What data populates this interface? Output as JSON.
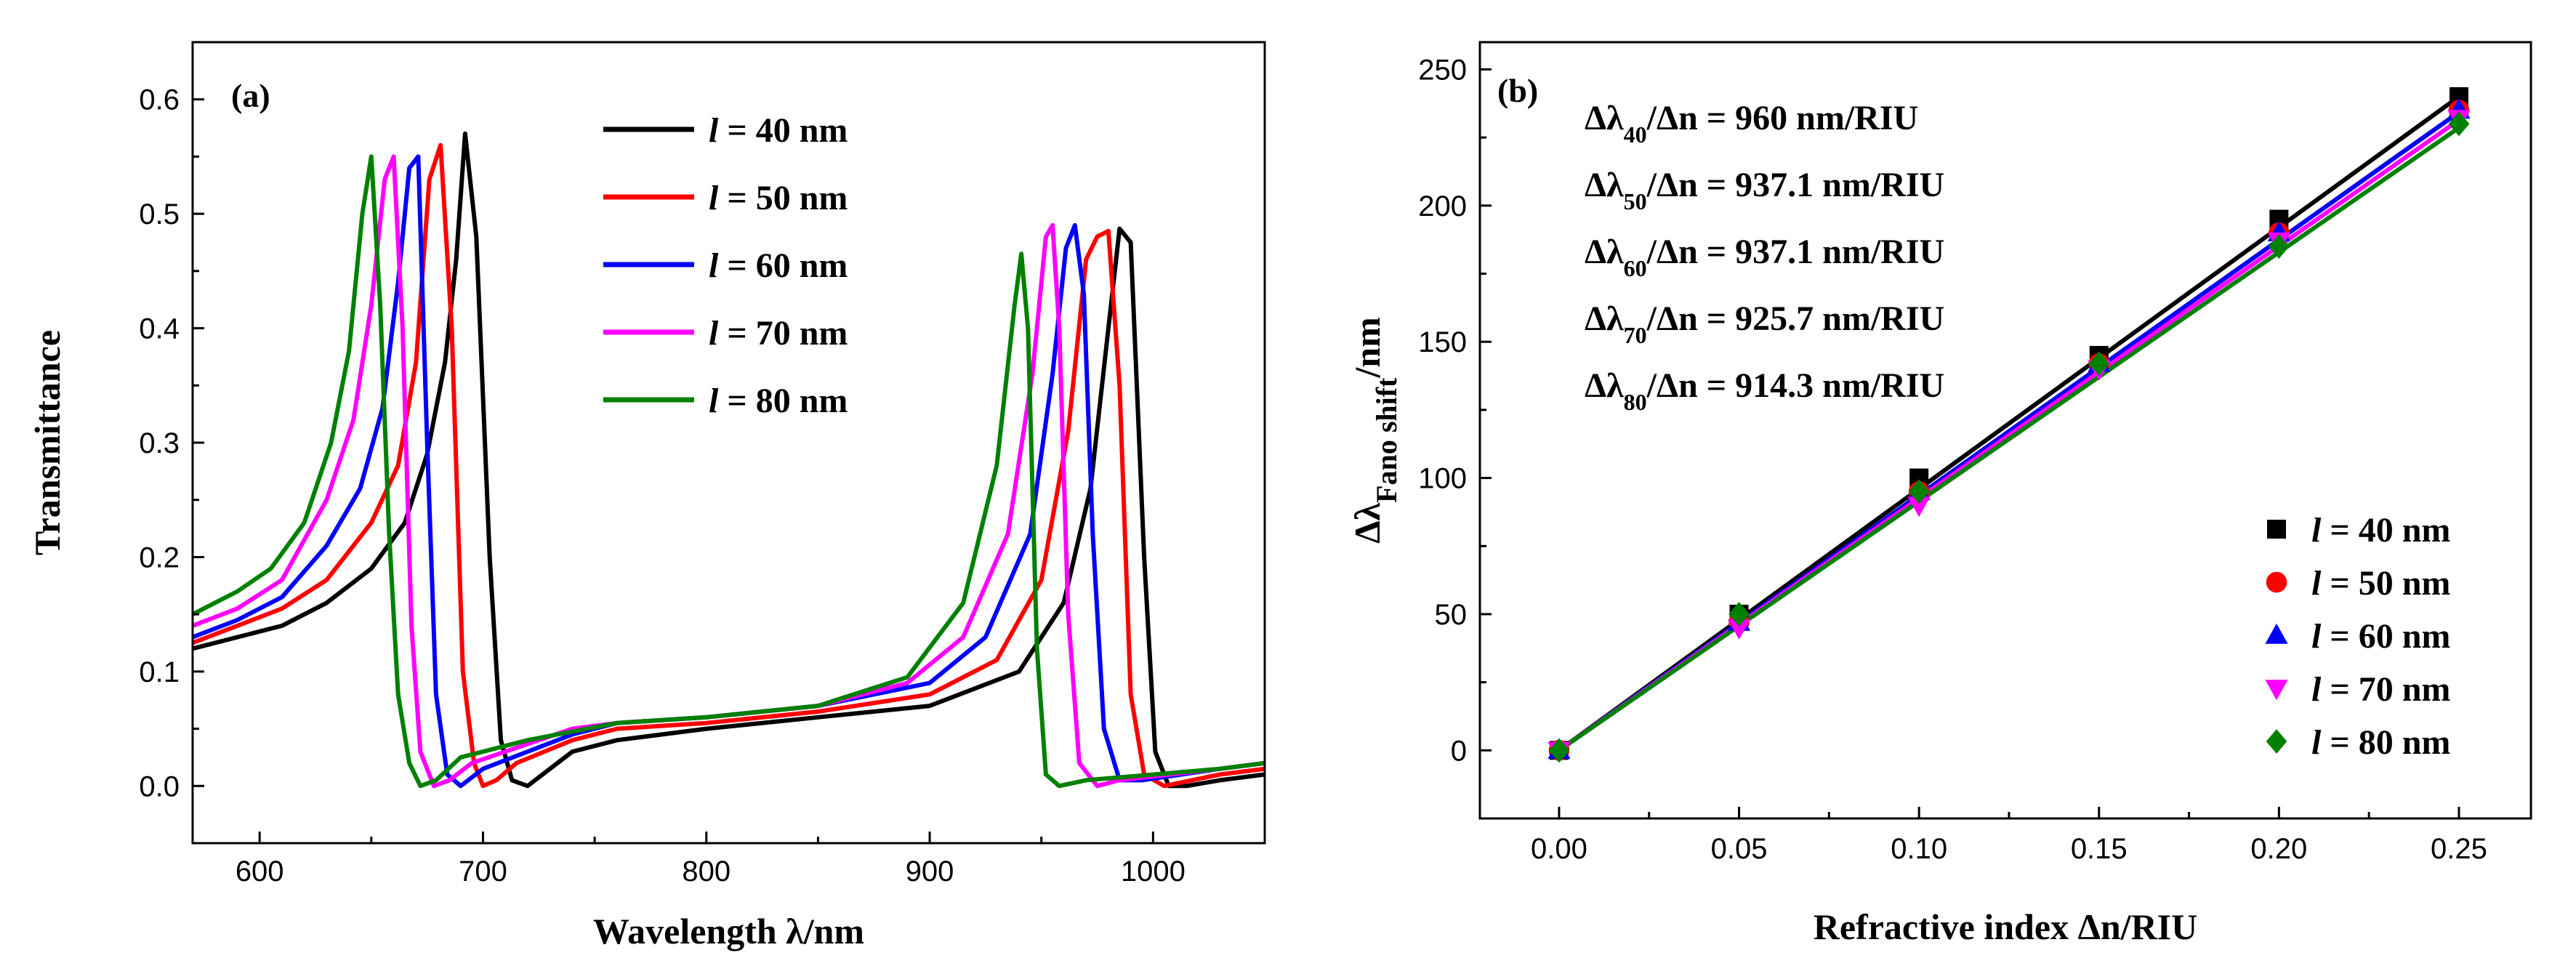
{
  "chart_data": [
    {
      "id": "a",
      "type": "line",
      "panel_label": "(a)",
      "title": "",
      "xlabel": "Wavelength λ/nm",
      "ylabel": "Transmittance",
      "xlim": [
        570,
        1050
      ],
      "ylim": [
        -0.05,
        0.65
      ],
      "xticks": [
        600,
        700,
        800,
        900,
        1000
      ],
      "yticks": [
        0.0,
        0.1,
        0.2,
        0.3,
        0.4,
        0.5,
        0.6
      ],
      "xtick_labels": [
        "600",
        "700",
        "800",
        "900",
        "1000"
      ],
      "ytick_labels": [
        "0.0",
        "0.1",
        "0.2",
        "0.3",
        "0.4",
        "0.5",
        "0.6"
      ],
      "legend_position": "top-center",
      "series": [
        {
          "name": "40 nm",
          "legend_var": "l",
          "color": "#000000",
          "x": [
            570,
            590,
            610,
            630,
            650,
            665,
            675,
            683,
            688,
            692,
            697,
            703,
            708,
            713,
            720,
            740,
            760,
            800,
            850,
            900,
            940,
            960,
            972,
            980,
            985,
            990,
            996,
            1001,
            1007,
            1015,
            1030,
            1050
          ],
          "y": [
            0.12,
            0.13,
            0.14,
            0.16,
            0.19,
            0.23,
            0.29,
            0.37,
            0.46,
            0.57,
            0.48,
            0.2,
            0.04,
            0.005,
            0.0,
            0.03,
            0.04,
            0.05,
            0.06,
            0.07,
            0.1,
            0.16,
            0.26,
            0.4,
            0.487,
            0.475,
            0.2,
            0.03,
            0.0,
            0.0,
            0.005,
            0.01
          ]
        },
        {
          "name": "50 nm",
          "legend_var": "l",
          "color": "#ff0000",
          "x": [
            570,
            590,
            610,
            630,
            650,
            662,
            670,
            676,
            681,
            686,
            691,
            696,
            700,
            706,
            715,
            740,
            760,
            800,
            850,
            900,
            930,
            950,
            962,
            970,
            975,
            980,
            985,
            990,
            996,
            1005,
            1030,
            1050
          ],
          "y": [
            0.125,
            0.14,
            0.155,
            0.18,
            0.23,
            0.28,
            0.37,
            0.53,
            0.56,
            0.4,
            0.1,
            0.02,
            0.0,
            0.005,
            0.02,
            0.04,
            0.05,
            0.055,
            0.065,
            0.08,
            0.11,
            0.18,
            0.31,
            0.46,
            0.48,
            0.485,
            0.35,
            0.08,
            0.01,
            0.0,
            0.01,
            0.015
          ]
        },
        {
          "name": "60 nm",
          "legend_var": "l",
          "color": "#0000ff",
          "x": [
            570,
            590,
            610,
            630,
            645,
            655,
            662,
            667,
            671,
            675,
            679,
            684,
            690,
            700,
            740,
            760,
            800,
            850,
            900,
            925,
            945,
            955,
            961,
            965,
            969,
            973,
            978,
            985,
            995,
            1030,
            1050
          ],
          "y": [
            0.13,
            0.145,
            0.165,
            0.21,
            0.26,
            0.33,
            0.44,
            0.54,
            0.55,
            0.3,
            0.08,
            0.01,
            0.0,
            0.015,
            0.045,
            0.055,
            0.06,
            0.07,
            0.09,
            0.13,
            0.22,
            0.36,
            0.47,
            0.49,
            0.43,
            0.22,
            0.05,
            0.005,
            0.005,
            0.015,
            0.02
          ]
        },
        {
          "name": "70 nm",
          "legend_var": "l",
          "color": "#ff00ff",
          "x": [
            570,
            590,
            610,
            630,
            642,
            650,
            656,
            660,
            664,
            668,
            672,
            678,
            685,
            695,
            740,
            760,
            800,
            850,
            890,
            915,
            935,
            946,
            952,
            955,
            958,
            962,
            967,
            975,
            985,
            1030,
            1050
          ],
          "y": [
            0.14,
            0.155,
            0.18,
            0.25,
            0.32,
            0.42,
            0.53,
            0.55,
            0.4,
            0.14,
            0.03,
            0.0,
            0.005,
            0.02,
            0.05,
            0.055,
            0.06,
            0.07,
            0.09,
            0.13,
            0.22,
            0.36,
            0.48,
            0.49,
            0.4,
            0.15,
            0.02,
            0.0,
            0.005,
            0.015,
            0.02
          ]
        },
        {
          "name": "80 nm",
          "legend_var": "l",
          "color": "#008000",
          "x": [
            570,
            590,
            605,
            620,
            632,
            640,
            646,
            650,
            654,
            658,
            662,
            667,
            672,
            679,
            690,
            720,
            760,
            800,
            850,
            890,
            915,
            930,
            938,
            941,
            944,
            948,
            952,
            958,
            970,
            1030,
            1050
          ],
          "y": [
            0.15,
            0.17,
            0.19,
            0.23,
            0.3,
            0.38,
            0.5,
            0.55,
            0.42,
            0.22,
            0.08,
            0.02,
            0.0,
            0.005,
            0.025,
            0.04,
            0.055,
            0.06,
            0.07,
            0.095,
            0.16,
            0.28,
            0.42,
            0.465,
            0.4,
            0.12,
            0.01,
            0.0,
            0.005,
            0.015,
            0.02
          ]
        }
      ]
    },
    {
      "id": "b",
      "type": "scatter",
      "panel_label": "(b)",
      "title": "",
      "xlabel": "Refractive index Δn/RIU",
      "ylabel": "Δλ",
      "ylabel_sub": "Fano shift",
      "ylabel_end": "/nm",
      "xlim": [
        -0.022,
        0.27
      ],
      "ylim": [
        -25,
        260
      ],
      "xticks": [
        0.0,
        0.05,
        0.1,
        0.15,
        0.2,
        0.25
      ],
      "yticks": [
        0,
        50,
        100,
        150,
        200,
        250
      ],
      "xtick_labels": [
        "0.00",
        "0.05",
        "0.10",
        "0.15",
        "0.20",
        "0.25"
      ],
      "ytick_labels": [
        "0",
        "50",
        "100",
        "150",
        "200",
        "250"
      ],
      "legend_position": "bottom-right",
      "annotations": [
        {
          "pre": "Δλ",
          "sub": "40",
          "post": "/Δn = 960 nm/RIU"
        },
        {
          "pre": "Δλ",
          "sub": "50",
          "post": "/Δn = 937.1 nm/RIU"
        },
        {
          "pre": "Δλ",
          "sub": "60",
          "post": "/Δn = 937.1 nm/RIU"
        },
        {
          "pre": "Δλ",
          "sub": "70",
          "post": "/Δn = 925.7 nm/RIU"
        },
        {
          "pre": "Δλ",
          "sub": "80",
          "post": "/Δn = 914.3 nm/RIU"
        }
      ],
      "series": [
        {
          "name": "40 nm",
          "legend_var": "l",
          "color": "#000000",
          "marker": "square",
          "x": [
            0.0,
            0.05,
            0.1,
            0.15,
            0.2,
            0.25
          ],
          "y": [
            0,
            50,
            100,
            145,
            195,
            240
          ],
          "fit": {
            "slope": 960,
            "intercept": 0
          }
        },
        {
          "name": "50 nm",
          "legend_var": "l",
          "color": "#ff0000",
          "marker": "circle",
          "x": [
            0.0,
            0.05,
            0.1,
            0.15,
            0.2,
            0.25
          ],
          "y": [
            0,
            47,
            95,
            142,
            190,
            235
          ],
          "fit": {
            "slope": 937.1,
            "intercept": 0
          }
        },
        {
          "name": "60 nm",
          "legend_var": "l",
          "color": "#0000ff",
          "marker": "triangle-up",
          "x": [
            0.0,
            0.05,
            0.1,
            0.15,
            0.2,
            0.25
          ],
          "y": [
            0,
            47,
            95,
            142,
            190,
            235
          ],
          "fit": {
            "slope": 937.1,
            "intercept": 0
          }
        },
        {
          "name": "70 nm",
          "legend_var": "l",
          "color": "#ff00ff",
          "marker": "triangle-down",
          "x": [
            0.0,
            0.05,
            0.1,
            0.15,
            0.2,
            0.25
          ],
          "y": [
            0,
            45,
            90,
            140,
            187,
            232
          ],
          "fit": {
            "slope": 925.7,
            "intercept": 0
          }
        },
        {
          "name": "80 nm",
          "legend_var": "l",
          "color": "#008000",
          "marker": "diamond",
          "x": [
            0.0,
            0.05,
            0.1,
            0.15,
            0.2,
            0.25
          ],
          "y": [
            0,
            50,
            95,
            142,
            185,
            230
          ],
          "fit": {
            "slope": 914.3,
            "intercept": 0
          }
        }
      ]
    }
  ]
}
